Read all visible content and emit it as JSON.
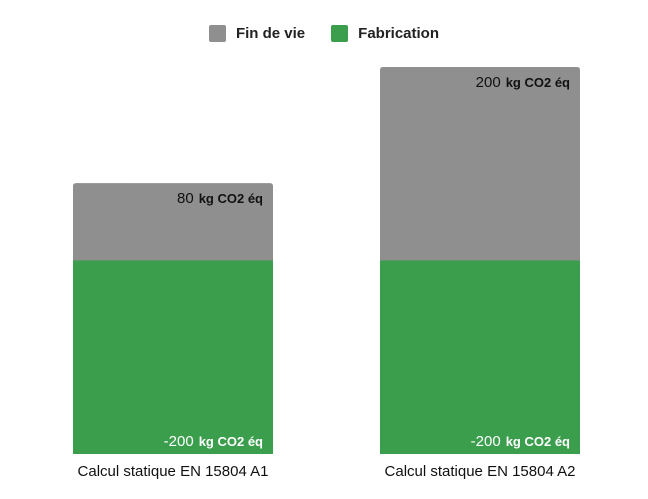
{
  "legend": {
    "items": [
      {
        "label": "Fin de vie",
        "color": "#8f8f8f"
      },
      {
        "label": "Fabrication",
        "color": "#3a9e4c"
      }
    ]
  },
  "chart_data": {
    "type": "bar",
    "stacked": true,
    "title": "",
    "xlabel": "",
    "ylabel": "",
    "grid": false,
    "legend_position": "top",
    "categories": [
      "Calcul statique EN 15804 A1",
      "Calcul statique EN 15804 A2"
    ],
    "series": [
      {
        "name": "Fabrication",
        "color": "#3a9e4c",
        "values": [
          -200,
          -200
        ],
        "labels": [
          "-200",
          "-200"
        ],
        "label_color": "#ffffff"
      },
      {
        "name": "Fin de vie",
        "color": "#8f8f8f",
        "values": [
          80,
          200
        ],
        "labels": [
          "80",
          "200"
        ],
        "label_color": "#111111"
      }
    ],
    "unit": "kg CO2 éq"
  }
}
